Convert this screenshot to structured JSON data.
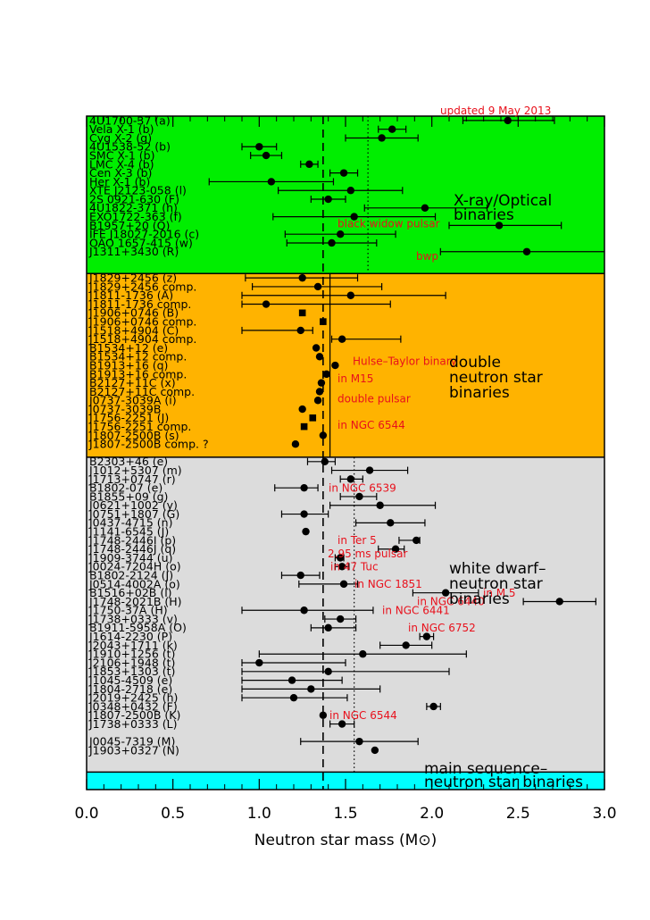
{
  "chart_data": {
    "type": "scatter",
    "xlabel": "Neutron star mass (M⊙)",
    "xlim": [
      0.0,
      3.0
    ],
    "xticks": [
      "0.0",
      "0.5",
      "1.0",
      "1.5",
      "2.0",
      "2.5",
      "3.0"
    ],
    "update_note": "updated 9 May 2013",
    "reference_lines": {
      "dashed": 1.37,
      "solid": 1.41,
      "dotted_xray": 1.63,
      "dotted_wd": 1.55
    },
    "groups": [
      {
        "name": "X-ray/Optical binaries",
        "lines": [
          "X-ray/Optical",
          "binaries"
        ],
        "color": "#00ee00",
        "range": [
          0,
          18
        ]
      },
      {
        "name": "double neutron star binaries",
        "lines": [
          "double",
          "neutron star",
          "binaries"
        ],
        "color": "#ffb300",
        "range": [
          18,
          39
        ]
      },
      {
        "name": "white dwarf-neutron star binaries",
        "lines": [
          "white dwarf–",
          "neutron star",
          "binaries"
        ],
        "color": "#dcdcdc",
        "range": [
          39,
          75
        ]
      },
      {
        "name": "main sequence-neutron star binaries",
        "lines": [
          "main sequence–",
          "neutron star binaries"
        ],
        "color": "#00ffff",
        "range": [
          75,
          77
        ]
      }
    ],
    "points": [
      {
        "label": "4U1700-37 (a)",
        "mass": 2.44,
        "lo": 2.18,
        "hi": 2.71,
        "marker": "dot"
      },
      {
        "label": "Vela X-1 (b)",
        "mass": 1.77,
        "lo": 1.69,
        "hi": 1.85,
        "marker": "dot"
      },
      {
        "label": "Cyg X-2 (g)",
        "mass": 1.71,
        "lo": 1.5,
        "hi": 1.92,
        "marker": "dot"
      },
      {
        "label": "4U1538-52 (b)",
        "mass": 1.0,
        "lo": 0.9,
        "hi": 1.1,
        "marker": "dot"
      },
      {
        "label": "SMC X-1 (b)",
        "mass": 1.04,
        "lo": 0.95,
        "hi": 1.13,
        "marker": "dot"
      },
      {
        "label": "LMC X-4 (b)",
        "mass": 1.29,
        "lo": 1.24,
        "hi": 1.34,
        "marker": "dot"
      },
      {
        "label": "Cen X-3 (b)",
        "mass": 1.49,
        "lo": 1.41,
        "hi": 1.57,
        "marker": "dot"
      },
      {
        "label": "Her X-1 (b)",
        "mass": 1.07,
        "lo": 0.71,
        "hi": 1.43,
        "marker": "dot"
      },
      {
        "label": "XTE J2123-058 (l)",
        "mass": 1.53,
        "lo": 1.11,
        "hi": 1.83,
        "marker": "dot"
      },
      {
        "label": "2S 0921-630 (F)",
        "mass": 1.4,
        "lo": 1.3,
        "hi": 1.5,
        "marker": "dot"
      },
      {
        "label": "4U1822-371 (h)",
        "mass": 1.96,
        "lo": 1.61,
        "hi": 2.32,
        "marker": "dot"
      },
      {
        "label": "EXO1722-363 (f)",
        "mass": 1.55,
        "lo": 1.08,
        "hi": 2.02,
        "marker": "dot"
      },
      {
        "label": "B1957+20 (Q)",
        "mass": 2.39,
        "lo": 2.1,
        "hi": 2.75,
        "marker": "dot"
      },
      {
        "label": "IFE J18027-2016 (c)",
        "mass": 1.47,
        "lo": 1.15,
        "hi": 1.79,
        "marker": "dot"
      },
      {
        "label": "OAO 1657-415 (w)",
        "mass": 1.42,
        "lo": 1.16,
        "hi": 1.68,
        "marker": "dot"
      },
      {
        "label": "J1311+3430 (R)",
        "mass": 2.55,
        "lo": 2.05,
        "hi": 3.0,
        "marker": "dot"
      },
      {
        "label": "",
        "mass": null,
        "marker": "none"
      },
      {
        "label": "",
        "mass": null,
        "marker": "none"
      },
      {
        "label": "J1829+2456 (z)",
        "mass": 1.25,
        "lo": 0.92,
        "hi": 1.57,
        "marker": "dot"
      },
      {
        "label": "J1829+2456 comp.",
        "mass": 1.34,
        "lo": 0.96,
        "hi": 1.71,
        "marker": "dot"
      },
      {
        "label": "J1811-1736 (A)",
        "mass": 1.53,
        "lo": 0.9,
        "hi": 2.08,
        "marker": "dot"
      },
      {
        "label": "J1811-1736 comp.",
        "mass": 1.04,
        "lo": 0.9,
        "hi": 1.76,
        "marker": "dot"
      },
      {
        "label": "J1906+0746 (B)",
        "mass": 1.25,
        "marker": "square"
      },
      {
        "label": "J1906+0746 comp.",
        "mass": 1.37,
        "marker": "square"
      },
      {
        "label": "J1518+4904 (C)",
        "mass": 1.24,
        "lo": 0.9,
        "hi": 1.31,
        "marker": "dot"
      },
      {
        "label": "J1518+4904 comp.",
        "mass": 1.48,
        "lo": 1.42,
        "hi": 1.82,
        "marker": "dot"
      },
      {
        "label": "B1534+12 (e)",
        "mass": 1.33,
        "marker": "dot"
      },
      {
        "label": "B1534+12 comp.",
        "mass": 1.35,
        "marker": "dot"
      },
      {
        "label": "B1913+16 (q)",
        "mass": 1.44,
        "marker": "dot"
      },
      {
        "label": "B1913+16 comp.",
        "mass": 1.39,
        "marker": "dot"
      },
      {
        "label": "B2127+11C (x)",
        "mass": 1.36,
        "marker": "dot"
      },
      {
        "label": "B2127+11C comp.",
        "mass": 1.35,
        "marker": "dot"
      },
      {
        "label": "J0737-3039A (i)",
        "mass": 1.34,
        "marker": "dot"
      },
      {
        "label": "J0737-3039B",
        "mass": 1.25,
        "marker": "dot"
      },
      {
        "label": "J1756-2251 (J)",
        "mass": 1.31,
        "marker": "square"
      },
      {
        "label": "J1756-2251 comp.",
        "mass": 1.26,
        "marker": "square"
      },
      {
        "label": "J1807-2500B (s)",
        "mass": 1.37,
        "marker": "dot"
      },
      {
        "label": "J1807-2500B comp. ?",
        "mass": 1.21,
        "marker": "dot"
      },
      {
        "label": "",
        "mass": null,
        "marker": "none"
      },
      {
        "label": "B2303+46 (e)",
        "mass": 1.38,
        "lo": 1.28,
        "hi": 1.44,
        "marker": "dot"
      },
      {
        "label": "J1012+5307 (m)",
        "mass": 1.64,
        "lo": 1.42,
        "hi": 1.86,
        "marker": "dot"
      },
      {
        "label": "J1713+0747 (r)",
        "mass": 1.53,
        "lo": 1.47,
        "hi": 1.6,
        "marker": "dot"
      },
      {
        "label": "B1802-07 (e)",
        "mass": 1.26,
        "lo": 1.09,
        "hi": 1.34,
        "marker": "dot"
      },
      {
        "label": "B1855+09 (g)",
        "mass": 1.58,
        "lo": 1.47,
        "hi": 1.68,
        "marker": "dot"
      },
      {
        "label": "J0621+1002 (y)",
        "mass": 1.7,
        "lo": 1.41,
        "hi": 2.02,
        "marker": "dot"
      },
      {
        "label": "J0751+1807 (G)",
        "mass": 1.26,
        "lo": 1.13,
        "hi": 1.4,
        "marker": "dot"
      },
      {
        "label": "J0437-4715 (n)",
        "mass": 1.76,
        "lo": 1.56,
        "hi": 1.96,
        "marker": "dot"
      },
      {
        "label": "J1141-6545 (J)",
        "mass": 1.27,
        "marker": "dot"
      },
      {
        "label": "J1748-2446I (p)",
        "mass": 1.91,
        "lo": 1.81,
        "hi": 1.93,
        "marker": "dot"
      },
      {
        "label": "J1748-2446J (q)",
        "mass": 1.79,
        "lo": 1.69,
        "hi": 1.84,
        "marker": "dot"
      },
      {
        "label": "J1909-3744 (u)",
        "mass": 1.47,
        "lo": 1.44,
        "hi": 1.49,
        "marker": "dot"
      },
      {
        "label": "J0024-7204H (o)",
        "mass": 1.48,
        "lo": 1.44,
        "hi": 1.52,
        "marker": "dot"
      },
      {
        "label": "B1802-2124 (J)",
        "mass": 1.24,
        "lo": 1.13,
        "hi": 1.35,
        "marker": "dot"
      },
      {
        "label": "J0514-4002A (o)",
        "mass": 1.49,
        "lo": 1.23,
        "hi": 1.57,
        "marker": "dot"
      },
      {
        "label": "B1516+02B (l)",
        "mass": 2.08,
        "lo": 1.89,
        "hi": 2.27,
        "marker": "dot"
      },
      {
        "label": "J1748-2021B (H)",
        "mass": 2.74,
        "lo": 2.53,
        "hi": 2.95,
        "marker": "dot"
      },
      {
        "label": "J1750-37A (H)",
        "mass": 1.26,
        "lo": 0.9,
        "hi": 1.66,
        "marker": "dot"
      },
      {
        "label": "J1738+0333 (v)",
        "mass": 1.47,
        "lo": 1.38,
        "hi": 1.56,
        "marker": "dot"
      },
      {
        "label": "B1911-5958A (O)",
        "mass": 1.4,
        "lo": 1.3,
        "hi": 1.56,
        "marker": "dot"
      },
      {
        "label": "J1614-2230 (P)",
        "mass": 1.97,
        "lo": 1.93,
        "hi": 2.01,
        "marker": "dot"
      },
      {
        "label": "J2043+1711 (k)",
        "mass": 1.85,
        "lo": 1.7,
        "hi": 2.0,
        "marker": "dot"
      },
      {
        "label": "J1910+1256 (t)",
        "mass": 1.6,
        "lo": 1.0,
        "hi": 2.2,
        "marker": "dot"
      },
      {
        "label": "J2106+1948 (t)",
        "mass": 1.0,
        "lo": 0.9,
        "hi": 1.5,
        "marker": "dot"
      },
      {
        "label": "J1853+1303 (t)",
        "mass": 1.4,
        "lo": 0.9,
        "hi": 2.1,
        "marker": "dot"
      },
      {
        "label": "J1045-4509 (e)",
        "mass": 1.19,
        "lo": 0.9,
        "hi": 1.48,
        "marker": "dot"
      },
      {
        "label": "J1804-2718 (e)",
        "mass": 1.3,
        "lo": 0.9,
        "hi": 1.7,
        "marker": "dot"
      },
      {
        "label": "J2019+2425 (h)",
        "mass": 1.2,
        "lo": 0.9,
        "hi": 1.51,
        "marker": "dot"
      },
      {
        "label": "J0348+0432 (F)",
        "mass": 2.01,
        "lo": 1.97,
        "hi": 2.05,
        "marker": "dot"
      },
      {
        "label": "J1807-2500B (K)",
        "mass": 1.37,
        "marker": "dot"
      },
      {
        "label": "J1738+0333 (L)",
        "mass": 1.48,
        "lo": 1.41,
        "hi": 1.55,
        "marker": "dot"
      },
      {
        "label": "",
        "mass": null,
        "marker": "none"
      },
      {
        "label": "J0045-7319 (M)",
        "mass": 1.58,
        "lo": 1.24,
        "hi": 1.92,
        "marker": "dot"
      },
      {
        "label": "J1903+0327 (N)",
        "mass": 1.67,
        "marker": "dot"
      }
    ],
    "annotations": [
      {
        "text": "black widow pulsar",
        "row": 11.8
      },
      {
        "text": "bwp",
        "row": 15.5
      },
      {
        "text": "Hulse–Taylor binary",
        "row": 27.5
      },
      {
        "text": "in M15",
        "row": 29.5
      },
      {
        "text": "double pulsar",
        "row": 31.8
      },
      {
        "text": "in NGC 6544",
        "row": 34.8
      },
      {
        "text": "in NGC 6539",
        "row": 42.0
      },
      {
        "text": "in Ter 5",
        "row": 48.0
      },
      {
        "text": "2.95 ms pulsar",
        "row": 49.5
      },
      {
        "text": "in 47 Tuc",
        "row": 51.0
      },
      {
        "text": "in NGC 1851",
        "row": 53.0
      },
      {
        "text": "in M 5",
        "row": 54.0
      },
      {
        "text": "in NGC 6440",
        "row": 55.0
      },
      {
        "text": "in NGC 6441",
        "row": 56.0
      },
      {
        "text": "in NGC 6752",
        "row": 58.0
      },
      {
        "text": "in NGC 6544",
        "row": 68.0
      }
    ]
  }
}
